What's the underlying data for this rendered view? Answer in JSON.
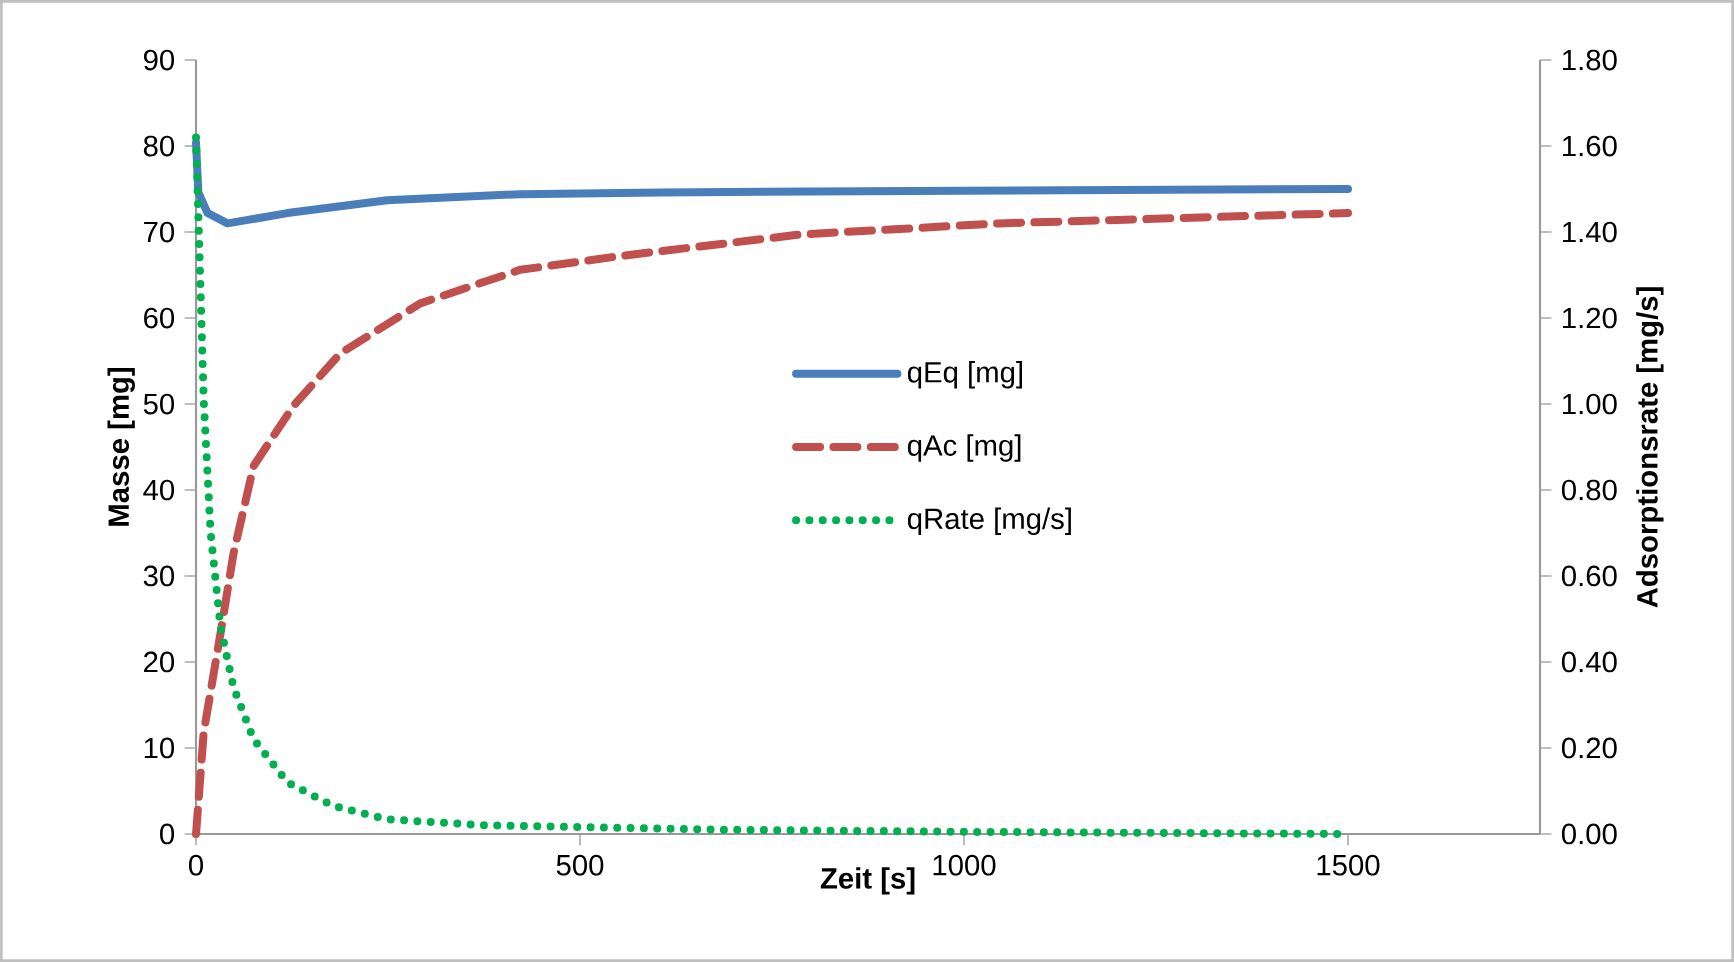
{
  "chart_data": {
    "type": "line",
    "xlabel": "Zeit  [s]",
    "ylabel": "Masse [mg]",
    "y2label": "Adsorptionsrate [mg/s]",
    "xlim": [
      0,
      1750
    ],
    "xticks": [
      0,
      500,
      1000,
      1500
    ],
    "ylim": [
      0,
      90
    ],
    "yticks": [
      0,
      10,
      20,
      30,
      40,
      50,
      60,
      70,
      80,
      90
    ],
    "y2lim": [
      0,
      1.8
    ],
    "y2ticks": [
      {
        "value": 0,
        "label": "0.00"
      },
      {
        "value": 0.2,
        "label": "0.20"
      },
      {
        "value": 0.4,
        "label": "0.40"
      },
      {
        "value": 0.6,
        "label": "0.60"
      },
      {
        "value": 0.8,
        "label": "0.80"
      },
      {
        "value": 1.0,
        "label": "1.00"
      },
      {
        "value": 1.2,
        "label": "1.20"
      },
      {
        "value": 1.4,
        "label": "1.40"
      },
      {
        "value": 1.6,
        "label": "1.60"
      },
      {
        "value": 1.8,
        "label": "1.80"
      }
    ],
    "grid": false,
    "legend": "right",
    "marker": "none",
    "series": [
      {
        "name": "qEq  [mg]",
        "color": "#4a7ebb",
        "line_style": "solid",
        "x": [
          0,
          3,
          15,
          41,
          119,
          249,
          422,
          605,
          1000,
          1500
        ],
        "values": [
          80.4,
          74.6,
          72.2,
          71.0,
          72.2,
          73.7,
          74.4,
          74.6,
          74.8,
          75.0
        ]
      },
      {
        "name": "qAc  [mg]",
        "color": "#c0504d",
        "line_style": "dashed",
        "x": [
          0,
          10,
          32,
          49,
          75,
          127,
          188,
          292,
          422,
          552,
          786,
          1046,
          1500
        ],
        "values": [
          0,
          11.8,
          23.4,
          32.7,
          42.8,
          49.8,
          55.9,
          61.7,
          65.6,
          67.2,
          69.7,
          71.0,
          72.2
        ]
      },
      {
        "name": "qRate  [mg/s]",
        "color": "#00b050",
        "line_style": "dotted",
        "axis": "y2",
        "x": [
          0,
          5,
          10,
          19,
          32,
          49,
          75,
          119,
          179,
          249,
          379,
          682,
          1000,
          1500
        ],
        "values": [
          1.62,
          1.32,
          1.01,
          0.7,
          0.48,
          0.34,
          0.22,
          0.12,
          0.065,
          0.034,
          0.02,
          0.01,
          0.005,
          0.0
        ]
      }
    ]
  }
}
